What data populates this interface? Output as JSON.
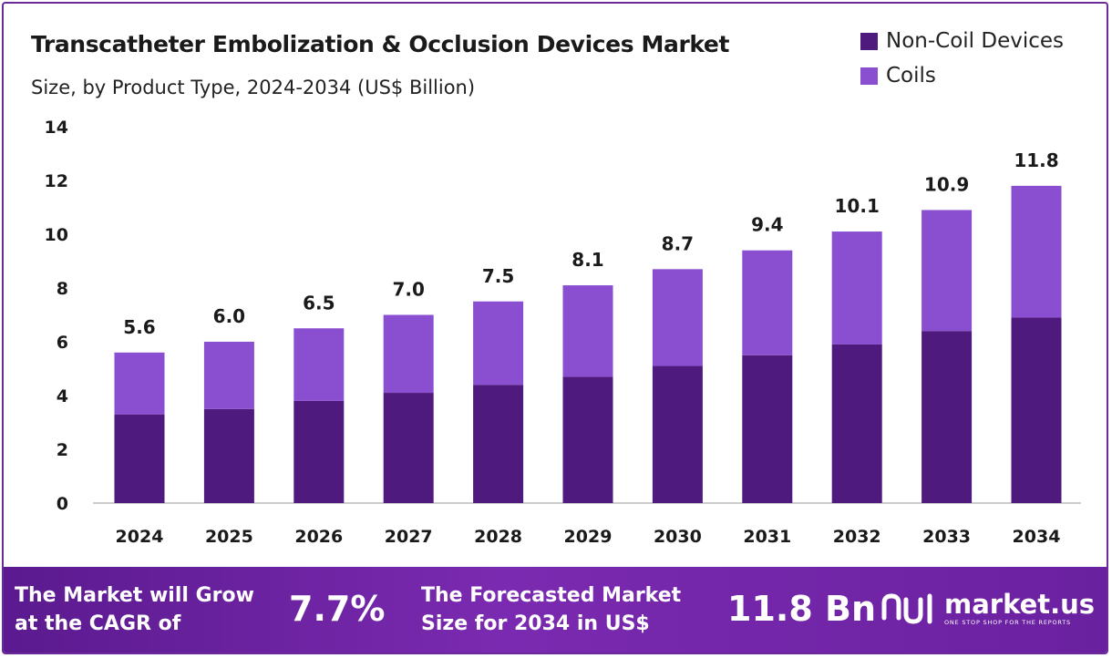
{
  "header": {
    "title": "Transcatheter Embolization & Occlusion Devices Market",
    "subtitle": "Size, by Product Type, 2024-2034 (US$ Billion)"
  },
  "legend": [
    {
      "label": "Non-Coil Devices",
      "color": "#4e1a7e"
    },
    {
      "label": "Coils",
      "color": "#8a4fd0"
    }
  ],
  "chart_data": {
    "type": "bar",
    "stacked": true,
    "categories": [
      "2024",
      "2025",
      "2026",
      "2027",
      "2028",
      "2029",
      "2030",
      "2031",
      "2032",
      "2033",
      "2034"
    ],
    "series": [
      {
        "name": "Non-Coil Devices",
        "color": "#4e1a7e",
        "values": [
          3.3,
          3.5,
          3.8,
          4.1,
          4.4,
          4.7,
          5.1,
          5.5,
          5.9,
          6.4,
          6.9
        ]
      },
      {
        "name": "Coils",
        "color": "#8a4fd0",
        "values": [
          2.3,
          2.5,
          2.7,
          2.9,
          3.1,
          3.4,
          3.6,
          3.9,
          4.2,
          4.5,
          4.9
        ]
      }
    ],
    "totals": [
      "5.6",
      "6.0",
      "6.5",
      "7.0",
      "7.5",
      "8.1",
      "8.7",
      "9.4",
      "10.1",
      "10.9",
      "11.8"
    ],
    "y_ticks": [
      0,
      2,
      4,
      6,
      8,
      10,
      12,
      14
    ],
    "ylim": [
      0,
      14
    ],
    "grid": false,
    "legend_position": "top-right"
  },
  "footer": {
    "cagr_text_line1": "The Market will Grow",
    "cagr_text_line2": "at the CAGR of",
    "cagr_value": "7.7%",
    "forecast_text_line1": "The Forecasted Market",
    "forecast_text_line2": "Size for 2034 in US$",
    "forecast_value": "11.8 Bn",
    "brand_name": "market.us",
    "brand_tagline": "ONE STOP SHOP FOR THE REPORTS",
    "brand_icon": "market-us-logo-icon"
  }
}
